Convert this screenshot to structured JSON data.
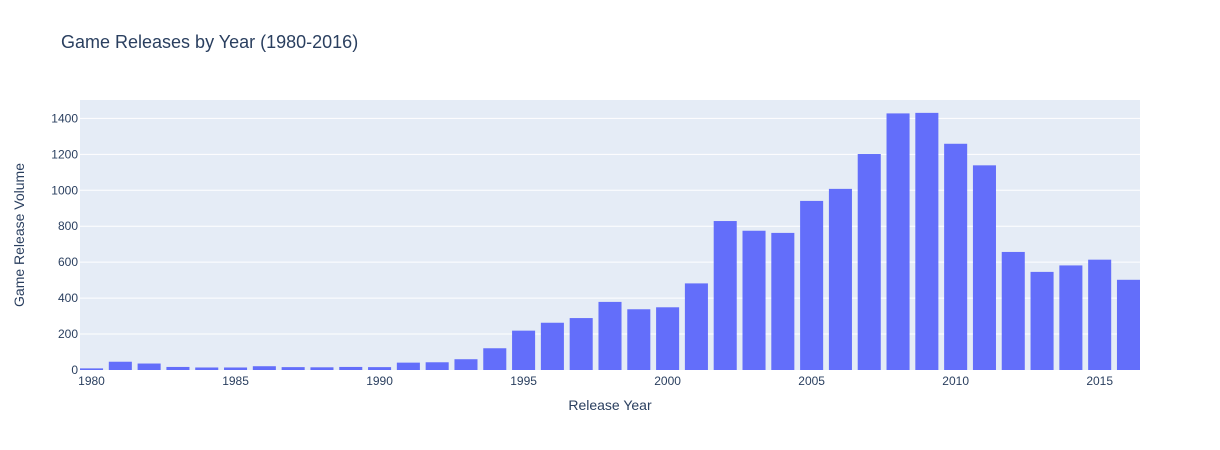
{
  "chart_data": {
    "type": "bar",
    "title": "Game Releases by Year (1980-2016)",
    "xlabel": "Release Year",
    "ylabel": "Game Release Volume",
    "x": [
      1980,
      1981,
      1982,
      1983,
      1984,
      1985,
      1986,
      1987,
      1988,
      1989,
      1990,
      1991,
      1992,
      1993,
      1994,
      1995,
      1996,
      1997,
      1998,
      1999,
      2000,
      2001,
      2002,
      2003,
      2004,
      2005,
      2006,
      2007,
      2008,
      2009,
      2010,
      2011,
      2012,
      2013,
      2014,
      2015,
      2016
    ],
    "values": [
      9,
      46,
      36,
      17,
      14,
      14,
      21,
      16,
      15,
      17,
      16,
      41,
      43,
      60,
      121,
      219,
      263,
      289,
      379,
      338,
      349,
      482,
      829,
      775,
      763,
      941,
      1008,
      1202,
      1428,
      1431,
      1259,
      1139,
      657,
      546,
      582,
      614,
      502
    ],
    "xlim": [
      1979.6,
      2016.4
    ],
    "ylim": [
      0,
      1502.6
    ],
    "xticks": [
      1980,
      1985,
      1990,
      1995,
      2000,
      2005,
      2010,
      2015
    ],
    "yticks": [
      0,
      200,
      400,
      600,
      800,
      1000,
      1200,
      1400
    ],
    "grid": true,
    "colors": {
      "bar": "#636efa",
      "plot_bg": "#e5ecf6",
      "grid": "#ffffff",
      "text": "#2a3f5f"
    }
  }
}
